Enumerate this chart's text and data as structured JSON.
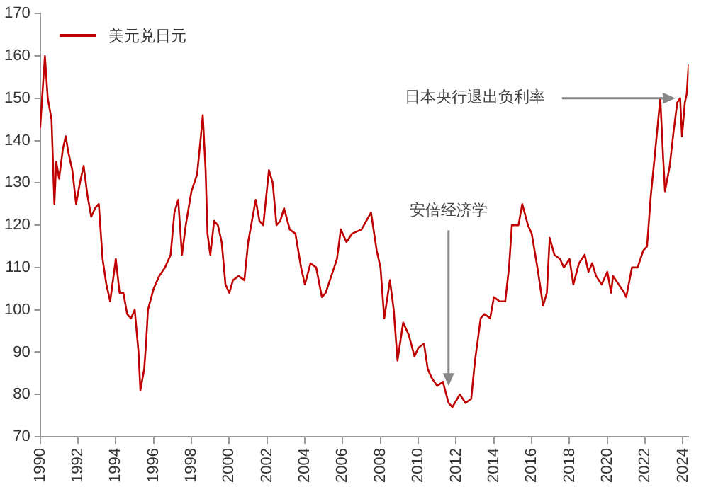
{
  "chart_data": {
    "type": "line",
    "legend": "top left",
    "grid": false,
    "marker": "none",
    "line_style": "solid",
    "xlim": [
      1990,
      2024.3
    ],
    "xticks": [
      1990,
      1992,
      1994,
      1996,
      1998,
      2000,
      2002,
      2004,
      2006,
      2008,
      2010,
      2012,
      2014,
      2016,
      2018,
      2020,
      2022,
      2024
    ],
    "ylim": [
      70,
      170
    ],
    "yticks": [
      70,
      80,
      90,
      100,
      110,
      120,
      130,
      140,
      150,
      160,
      170
    ],
    "annotations": [
      {
        "text": "安倍经济学",
        "x": 2011.6,
        "y": 82
      },
      {
        "text": "日本央行退出负利率",
        "x": 2023.6,
        "y": 150
      }
    ],
    "series": [
      {
        "name": "美元兑日元",
        "color": "#c00000",
        "x": [
          1990.0,
          1990.1,
          1990.25,
          1990.4,
          1990.6,
          1990.75,
          1990.85,
          1991.0,
          1991.2,
          1991.35,
          1991.5,
          1991.7,
          1991.9,
          1992.1,
          1992.3,
          1992.5,
          1992.7,
          1992.9,
          1993.1,
          1993.3,
          1993.5,
          1993.7,
          1994.0,
          1994.2,
          1994.4,
          1994.6,
          1994.8,
          1995.0,
          1995.2,
          1995.3,
          1995.5,
          1995.6,
          1995.7,
          1996.0,
          1996.3,
          1996.6,
          1996.9,
          1997.1,
          1997.3,
          1997.5,
          1997.7,
          1998.0,
          1998.3,
          1998.5,
          1998.6,
          1998.75,
          1998.85,
          1999.0,
          1999.2,
          1999.4,
          1999.6,
          1999.8,
          2000.0,
          2000.2,
          2000.5,
          2000.8,
          2001.0,
          2001.2,
          2001.4,
          2001.6,
          2001.8,
          2002.1,
          2002.3,
          2002.5,
          2002.7,
          2002.9,
          2003.2,
          2003.5,
          2003.8,
          2004.0,
          2004.3,
          2004.6,
          2004.9,
          2005.1,
          2005.4,
          2005.7,
          2005.9,
          2006.2,
          2006.5,
          2007.0,
          2007.5,
          2007.8,
          2008.0,
          2008.2,
          2008.5,
          2008.7,
          2008.9,
          2009.2,
          2009.5,
          2009.8,
          2010.0,
          2010.3,
          2010.5,
          2010.7,
          2011.0,
          2011.3,
          2011.6,
          2011.8,
          2012.2,
          2012.5,
          2012.8,
          2013.0,
          2013.3,
          2013.5,
          2013.8,
          2014.0,
          2014.3,
          2014.6,
          2014.8,
          2014.95,
          2015.3,
          2015.5,
          2015.8,
          2016.0,
          2016.3,
          2016.6,
          2016.8,
          2016.95,
          2017.2,
          2017.5,
          2017.7,
          2018.0,
          2018.2,
          2018.5,
          2018.8,
          2019.0,
          2019.2,
          2019.4,
          2019.7,
          2020.0,
          2020.2,
          2020.3,
          2020.6,
          2020.9,
          2021.0,
          2021.3,
          2021.6,
          2021.9,
          2022.1,
          2022.3,
          2022.5,
          2022.8,
          2022.95,
          2023.05,
          2023.3,
          2023.5,
          2023.7,
          2023.85,
          2023.95,
          2024.1,
          2024.2,
          2024.3
        ],
        "values": [
          143,
          150,
          160,
          150,
          145,
          125,
          135,
          131,
          138,
          141,
          137,
          133,
          125,
          130,
          134,
          127,
          122,
          124,
          125,
          112,
          106,
          102,
          112,
          104,
          104,
          99,
          98,
          100,
          90,
          81,
          86,
          92,
          100,
          105,
          108,
          110,
          113,
          123,
          126,
          113,
          120,
          128,
          132,
          141,
          146,
          133,
          118,
          113,
          121,
          120,
          116,
          106,
          104,
          107,
          108,
          107,
          116,
          121,
          126,
          121,
          120,
          133,
          130,
          120,
          121,
          124,
          119,
          118,
          110,
          106,
          111,
          110,
          103,
          104,
          108,
          112,
          119,
          116,
          118,
          119,
          123,
          114,
          110,
          98,
          107,
          100,
          88,
          97,
          94,
          89,
          91,
          92,
          86,
          84,
          82,
          83,
          78,
          77,
          80,
          78,
          79,
          88,
          98,
          99,
          98,
          103,
          102,
          102,
          110,
          120,
          120,
          125,
          120,
          118,
          110,
          101,
          104,
          117,
          113,
          112,
          110,
          112,
          106,
          111,
          113,
          109,
          111,
          108,
          106,
          109,
          104,
          108,
          106,
          104,
          103,
          110,
          110,
          114,
          115,
          127,
          136,
          150,
          136,
          128,
          134,
          142,
          149,
          150,
          141,
          149,
          151,
          158
        ]
      }
    ]
  }
}
